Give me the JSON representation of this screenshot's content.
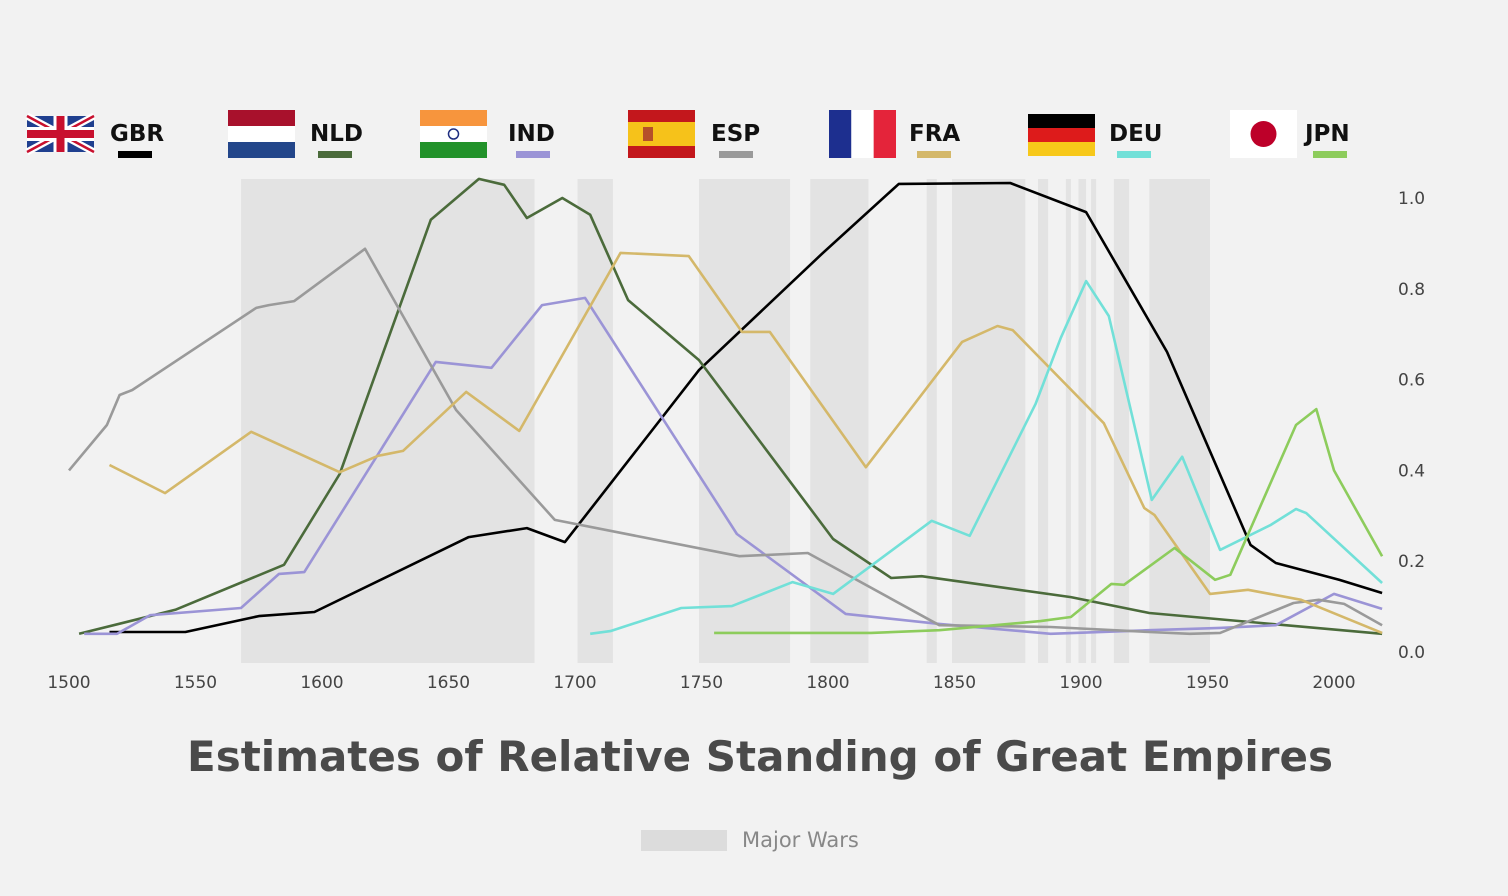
{
  "chart_data": {
    "type": "line",
    "title": "Estimates of Relative Standing of Great Empires",
    "xlabel": "",
    "ylabel": "",
    "xlim": [
      1500,
      2020
    ],
    "ylim": [
      0,
      1.05
    ],
    "x_ticks": [
      1500,
      1550,
      1600,
      1650,
      1700,
      1750,
      1800,
      1850,
      1900,
      1950,
      2000
    ],
    "y_ticks": [
      "0.0",
      "0.2",
      "0.4",
      "0.6",
      "0.8",
      "1.0"
    ],
    "y_axis_side": "right",
    "grid": false,
    "legend_placement": "top",
    "shaded_legend_label": "Major Wars",
    "shaded_color": "#e3e3e3",
    "major_wars": [
      [
        1568,
        1684
      ],
      [
        1701,
        1715
      ],
      [
        1749,
        1785
      ],
      [
        1793,
        1816
      ],
      [
        1839,
        1843
      ],
      [
        1849,
        1878
      ],
      [
        1883,
        1887
      ],
      [
        1894,
        1896
      ],
      [
        1899,
        1902
      ],
      [
        1904,
        1906
      ],
      [
        1913,
        1919
      ],
      [
        1927,
        1951
      ]
    ],
    "series": [
      {
        "name": "GBR",
        "flag": "uk-flag",
        "color": "#000000",
        "x": [
          1516,
          1546,
          1575,
          1597,
          1658,
          1681,
          1696,
          1749,
          1798,
          1828,
          1872,
          1902,
          1934,
          1967,
          1977,
          2002,
          2019
        ],
        "y": [
          0.044,
          0.044,
          0.079,
          0.088,
          0.253,
          0.273,
          0.242,
          0.621,
          0.879,
          1.031,
          1.033,
          0.969,
          0.661,
          0.236,
          0.196,
          0.159,
          0.13
        ]
      },
      {
        "name": "NLD",
        "flag": "netherlands-flag",
        "color": "#4b6b3b",
        "x": [
          1504,
          1542,
          1585,
          1607,
          1643,
          1662,
          1672,
          1681,
          1695,
          1706,
          1721,
          1749,
          1802,
          1825,
          1837,
          1896,
          1927,
          2019
        ],
        "y": [
          0.04,
          0.093,
          0.192,
          0.392,
          0.952,
          1.042,
          1.029,
          0.956,
          1.0,
          0.963,
          0.775,
          0.643,
          0.249,
          0.163,
          0.167,
          0.121,
          0.086,
          0.04
        ]
      },
      {
        "name": "IND",
        "flag": "india-flag",
        "color": "#9b94d6",
        "x": [
          1506,
          1519,
          1532,
          1568,
          1583,
          1593,
          1645,
          1667,
          1687,
          1704,
          1764,
          1807,
          1844,
          1888,
          1927,
          1955,
          1977,
          2000,
          2019
        ],
        "y": [
          0.04,
          0.04,
          0.081,
          0.097,
          0.172,
          0.176,
          0.639,
          0.626,
          0.764,
          0.78,
          0.26,
          0.084,
          0.062,
          0.04,
          0.048,
          0.053,
          0.059,
          0.128,
          0.095
        ]
      },
      {
        "name": "ESP",
        "flag": "spain-flag",
        "color": "#9a9a9a",
        "x": [
          1500,
          1515,
          1520,
          1525,
          1574,
          1579,
          1589,
          1617,
          1653,
          1692,
          1765,
          1792,
          1844,
          1888,
          1927,
          1943,
          1955,
          1984,
          1994,
          2004,
          2019
        ],
        "y": [
          0.4,
          0.5,
          0.566,
          0.577,
          0.758,
          0.764,
          0.773,
          0.888,
          0.533,
          0.291,
          0.211,
          0.218,
          0.059,
          0.055,
          0.044,
          0.04,
          0.042,
          0.108,
          0.115,
          0.106,
          0.059
        ]
      },
      {
        "name": "FRA",
        "flag": "france-flag",
        "color": "#d4b86a",
        "x": [
          1516,
          1538,
          1572,
          1607,
          1622,
          1632,
          1657,
          1678,
          1718,
          1745,
          1766,
          1777,
          1815,
          1853,
          1867,
          1873,
          1909,
          1925,
          1929,
          1951,
          1966,
          1987,
          2019
        ],
        "y": [
          0.412,
          0.35,
          0.485,
          0.396,
          0.432,
          0.443,
          0.573,
          0.487,
          0.879,
          0.872,
          0.705,
          0.705,
          0.407,
          0.683,
          0.718,
          0.709,
          0.504,
          0.317,
          0.302,
          0.128,
          0.137,
          0.115,
          0.042
        ]
      },
      {
        "name": "DEU",
        "flag": "germany-flag",
        "color": "#72e0d8",
        "x": [
          1706,
          1714,
          1742,
          1762,
          1786,
          1802,
          1841,
          1856,
          1882,
          1892,
          1902,
          1911,
          1928,
          1940,
          1955,
          1975,
          1985,
          1989,
          2019
        ],
        "y": [
          0.04,
          0.046,
          0.097,
          0.101,
          0.154,
          0.128,
          0.289,
          0.256,
          0.546,
          0.692,
          0.817,
          0.74,
          0.335,
          0.43,
          0.225,
          0.28,
          0.315,
          0.306,
          0.152
        ]
      },
      {
        "name": "JPN",
        "flag": "japan-flag",
        "color": "#8dcc5c",
        "x": [
          1755,
          1817,
          1844,
          1884,
          1896,
          1912,
          1917,
          1937,
          1953,
          1959,
          1985,
          1993,
          2000,
          2019
        ],
        "y": [
          0.042,
          0.042,
          0.048,
          0.068,
          0.077,
          0.15,
          0.148,
          0.229,
          0.159,
          0.17,
          0.5,
          0.535,
          0.4,
          0.211
        ]
      }
    ]
  }
}
